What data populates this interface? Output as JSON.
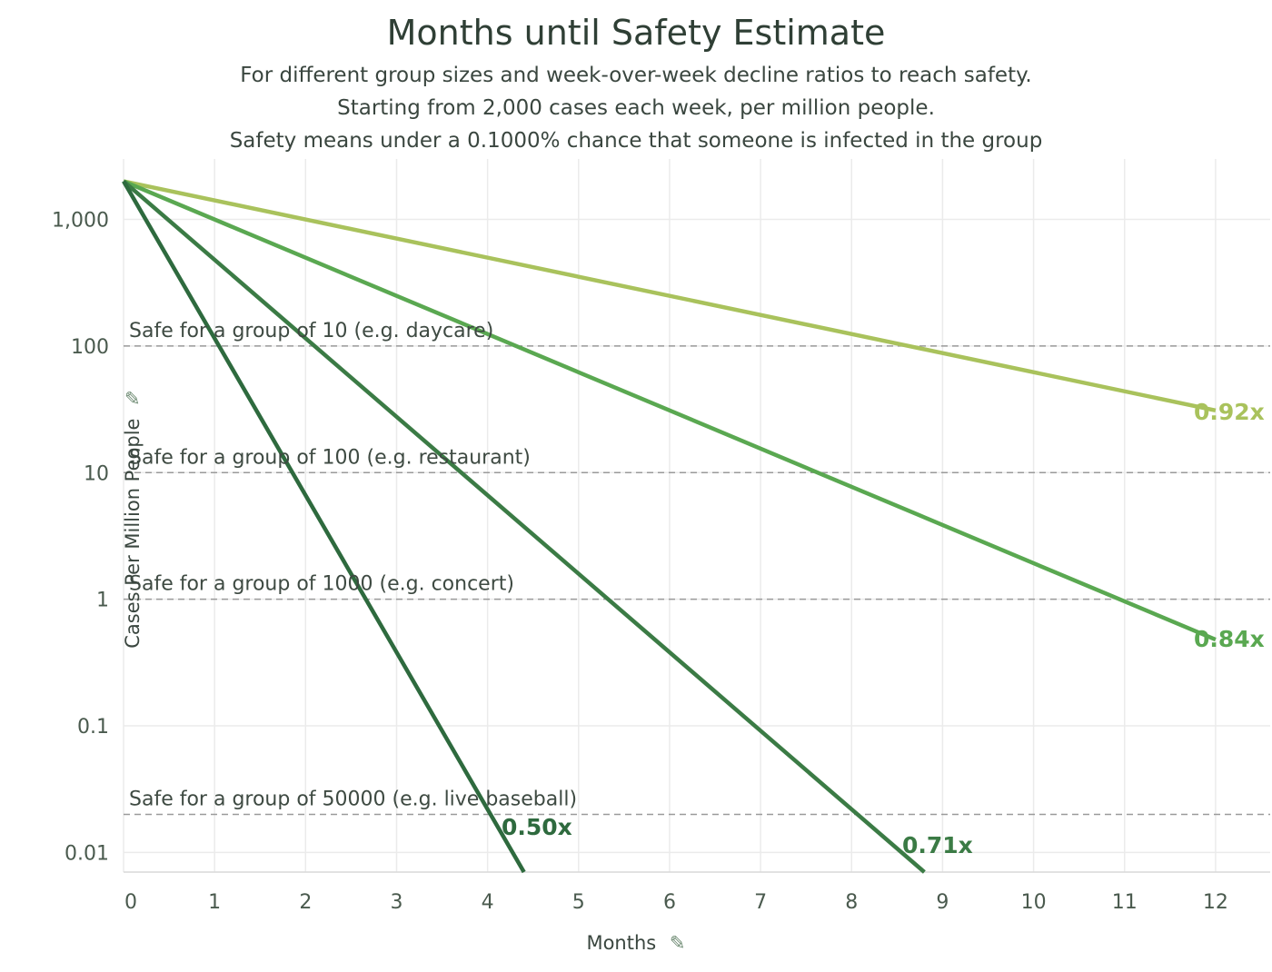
{
  "chart_data": {
    "type": "line",
    "title": "Months until Safety Estimate",
    "subtitle": [
      "For different group sizes and week-over-week decline ratios to reach safety.",
      "Starting from 2,000 cases each week, per million people.",
      "Safety means under a 0.1000% chance that someone is infected in the group"
    ],
    "xlabel": "Months",
    "ylabel": "Cases Per Million People",
    "y_scale": "log",
    "xlim": [
      0,
      12.6
    ],
    "ylim": [
      0.007,
      3000
    ],
    "x_ticks": [
      "0",
      "1",
      "2",
      "3",
      "4",
      "5",
      "6",
      "7",
      "8",
      "9",
      "10",
      "11",
      "12"
    ],
    "y_ticks": [
      {
        "value": 1000,
        "label": "1,000"
      },
      {
        "value": 100,
        "label": "100"
      },
      {
        "value": 10,
        "label": "10"
      },
      {
        "value": 1,
        "label": "1"
      },
      {
        "value": 0.1,
        "label": "0.1"
      },
      {
        "value": 0.01,
        "label": "0.01"
      }
    ],
    "grid": true,
    "series": [
      {
        "name": "0.92x",
        "color": "#a9c25c",
        "x": [
          0,
          12
        ],
        "y": [
          2000,
          31
        ]
      },
      {
        "name": "0.84x",
        "color": "#5aa851",
        "x": [
          0,
          12
        ],
        "y": [
          2000,
          0.48
        ]
      },
      {
        "name": "0.71x",
        "color": "#3b7b45",
        "x": [
          0,
          8.8
        ],
        "y": [
          2000,
          0.007
        ]
      },
      {
        "name": "0.50x",
        "color": "#2e6a3e",
        "x": [
          0,
          4.4
        ],
        "y": [
          2000,
          0.007
        ]
      }
    ],
    "reference_lines": [
      {
        "value": 100,
        "label": "Safe for a group of 10 (e.g. daycare)"
      },
      {
        "value": 10,
        "label": "Safe for a group of 100 (e.g. restaurant)"
      },
      {
        "value": 1,
        "label": "Safe for a group of 1000 (e.g. concert)"
      },
      {
        "value": 0.02,
        "label": "Safe for a group of 50000 (e.g. live baseball)"
      }
    ]
  }
}
